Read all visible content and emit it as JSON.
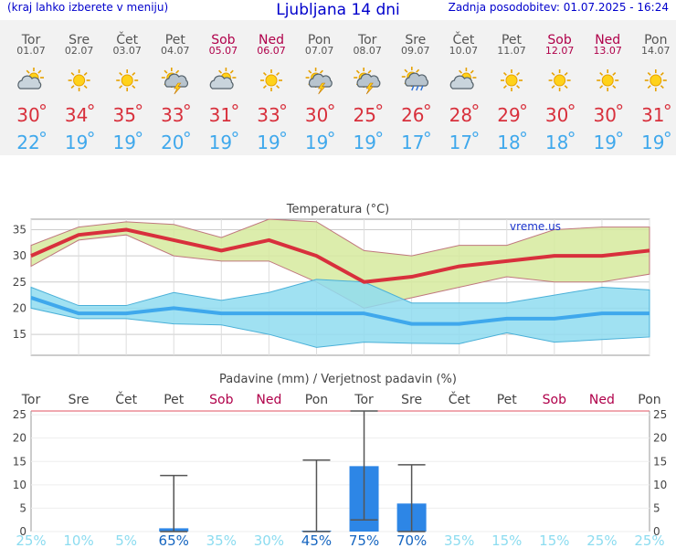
{
  "header": {
    "menu_hint": "(kraj lahko izberete v meniju)",
    "title": "Ljubljana 14 dni",
    "updated": "Zadnja posodobitev: 01.07.2025 - 16:24"
  },
  "days": [
    {
      "name": "Tor",
      "date": "01.07",
      "weekend": false,
      "icon": "sun-cloud-icon",
      "tmax": "30",
      "tmin": "22"
    },
    {
      "name": "Sre",
      "date": "02.07",
      "weekend": false,
      "icon": "sun-icon",
      "tmax": "34",
      "tmin": "19"
    },
    {
      "name": "Čet",
      "date": "03.07",
      "weekend": false,
      "icon": "sun-icon",
      "tmax": "35",
      "tmin": "19"
    },
    {
      "name": "Pet",
      "date": "04.07",
      "weekend": false,
      "icon": "thunderstorm-icon",
      "tmax": "33",
      "tmin": "20"
    },
    {
      "name": "Sob",
      "date": "05.07",
      "weekend": true,
      "icon": "sun-cloud-icon",
      "tmax": "31",
      "tmin": "19"
    },
    {
      "name": "Ned",
      "date": "06.07",
      "weekend": true,
      "icon": "sun-icon",
      "tmax": "33",
      "tmin": "19"
    },
    {
      "name": "Pon",
      "date": "07.07",
      "weekend": false,
      "icon": "thunderstorm-icon",
      "tmax": "30",
      "tmin": "19"
    },
    {
      "name": "Tor",
      "date": "08.07",
      "weekend": false,
      "icon": "thunderstorm-icon",
      "tmax": "25",
      "tmin": "19"
    },
    {
      "name": "Sre",
      "date": "09.07",
      "weekend": false,
      "icon": "sun-rain-icon",
      "tmax": "26",
      "tmin": "17"
    },
    {
      "name": "Čet",
      "date": "10.07",
      "weekend": false,
      "icon": "sun-cloud-icon",
      "tmax": "28",
      "tmin": "17"
    },
    {
      "name": "Pet",
      "date": "11.07",
      "weekend": false,
      "icon": "sun-icon",
      "tmax": "29",
      "tmin": "18"
    },
    {
      "name": "Sob",
      "date": "12.07",
      "weekend": true,
      "icon": "sun-icon",
      "tmax": "30",
      "tmin": "18"
    },
    {
      "name": "Ned",
      "date": "13.07",
      "weekend": true,
      "icon": "sun-icon",
      "tmax": "30",
      "tmin": "19"
    },
    {
      "name": "Pon",
      "date": "14.07",
      "weekend": false,
      "icon": "sun-icon",
      "tmax": "31",
      "tmin": "19"
    }
  ],
  "colors": {
    "tmax": "#d8303c",
    "tmin": "#3fa8ec",
    "weekend": "#b0004a",
    "band_max": "#d6ea9e",
    "band_min": "#8fdcf0",
    "bar": "#2d86e6",
    "whisker": "#555555",
    "prob_high": "#1565c0",
    "prob_low": "#8cdcf0"
  },
  "chart_data": [
    {
      "type": "line",
      "title": "Temperatura (°C)",
      "watermark": "vreme.us",
      "x": [
        "Tor",
        "Sre",
        "Čet",
        "Pet",
        "Sob",
        "Ned",
        "Pon",
        "Tor",
        "Sre",
        "Čet",
        "Pet",
        "Sob",
        "Ned",
        "Pon"
      ],
      "ylim": [
        11,
        37
      ],
      "yticks": [
        15,
        20,
        25,
        30,
        35
      ],
      "grid": true,
      "series": [
        {
          "role": "max_mean",
          "values": [
            30,
            34,
            35,
            33,
            31,
            33,
            30,
            25,
            26,
            28,
            29,
            30,
            30,
            31
          ]
        },
        {
          "role": "max_upper",
          "values": [
            32,
            35.5,
            36.5,
            36,
            33.5,
            37,
            36.5,
            31,
            30,
            32,
            32,
            35,
            35.5,
            35.5
          ]
        },
        {
          "role": "max_lower",
          "values": [
            28,
            33,
            34,
            30,
            29,
            29,
            25,
            20,
            22,
            24,
            26,
            25,
            25,
            26.5
          ]
        },
        {
          "role": "min_mean",
          "values": [
            22,
            19,
            19,
            20,
            19,
            19,
            19,
            19,
            17,
            17,
            18,
            18,
            19,
            19
          ]
        },
        {
          "role": "min_upper",
          "values": [
            24,
            20.5,
            20.5,
            23,
            21.5,
            23,
            25.5,
            25,
            21,
            21,
            21,
            22.5,
            24,
            23.5
          ]
        },
        {
          "role": "min_lower",
          "values": [
            20,
            18,
            18,
            17,
            16.8,
            15,
            12.5,
            13.5,
            13.3,
            13.2,
            15.3,
            13.5,
            14,
            14.5
          ]
        }
      ]
    },
    {
      "type": "bar",
      "title": "Padavine (mm) / Verjetnost padavin (%)",
      "categories": [
        "Tor",
        "Sre",
        "Čet",
        "Pet",
        "Sob",
        "Ned",
        "Pon",
        "Tor",
        "Sre",
        "Čet",
        "Pet",
        "Sob",
        "Ned",
        "Pon"
      ],
      "values": [
        0,
        0,
        0,
        0.7,
        0,
        0,
        0.2,
        14,
        6,
        0,
        0,
        0,
        0,
        0
      ],
      "whisker_low": [
        null,
        null,
        null,
        0,
        null,
        null,
        0,
        2.5,
        0,
        null,
        null,
        null,
        null,
        null
      ],
      "whisker_high": [
        null,
        null,
        null,
        12,
        null,
        null,
        15.3,
        25.8,
        14.3,
        null,
        null,
        null,
        null,
        null
      ],
      "ylim": [
        0,
        25.8
      ],
      "yticks": [
        0,
        5,
        10,
        15,
        20,
        25
      ],
      "probability": [
        "25%",
        "10%",
        "5%",
        "65%",
        "35%",
        "30%",
        "45%",
        "75%",
        "70%",
        "35%",
        "15%",
        "15%",
        "25%",
        "25%"
      ],
      "probability_values": [
        25,
        10,
        5,
        65,
        35,
        30,
        45,
        75,
        70,
        35,
        15,
        15,
        25,
        25
      ]
    }
  ]
}
